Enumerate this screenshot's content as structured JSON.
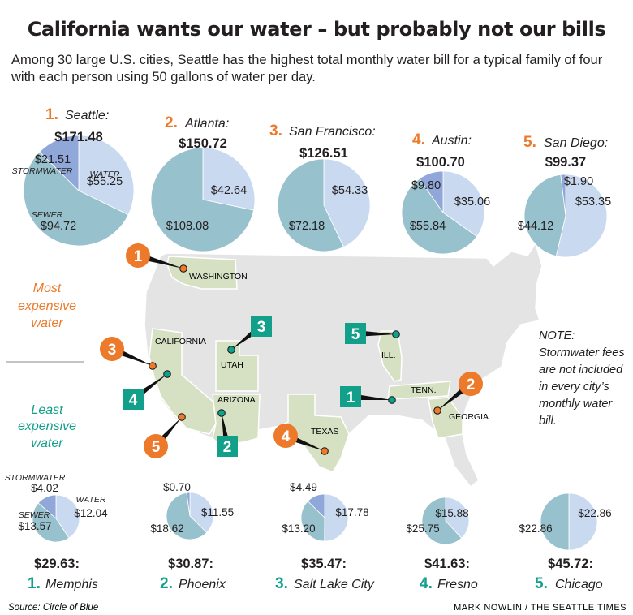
{
  "title": "California wants our water – but probably not our bills",
  "subtitle": "Among 30 large U.S. cities, Seattle has the highest total monthly water bill for a typical family of four with each person using 50 gallons of water per day.",
  "colors": {
    "water": "#c9daf0",
    "sewer": "#98c1ce",
    "stormwater": "#8fa7d9",
    "orange": "#ec7a2a",
    "teal": "#13a08a",
    "map_land": "#e4e4e4",
    "map_highlight": "#d6e0c2"
  },
  "legend": {
    "most": "Most expensive water",
    "least": "Least expensive water"
  },
  "note": "NOTE: Stormwater fees are not included in every city’s monthly water bill.",
  "source": "Source: Circle of Blue",
  "credit": "MARK NOWLIN / THE SEATTLE TIMES",
  "states": {
    "washington": "WASHINGTON",
    "california": "CALIFORNIA",
    "utah": "UTAH",
    "arizona": "ARIZONA",
    "texas": "TEXAS",
    "illinois": "ILL.",
    "tennessee": "TENN.",
    "georgia": "GEORGIA"
  },
  "chart_data": [
    {
      "type": "pie",
      "group": "most",
      "rank": "1.",
      "city": "Seattle:",
      "total": "$171.48",
      "slices": [
        {
          "name": "WATER",
          "value": 55.25,
          "label": "$55.25"
        },
        {
          "name": "SEWER",
          "value": 94.72,
          "label": "$94.72"
        },
        {
          "name": "STORMWATER",
          "value": 21.51,
          "label": "$21.51"
        }
      ]
    },
    {
      "type": "pie",
      "group": "most",
      "rank": "2.",
      "city": "Atlanta:",
      "total": "$150.72",
      "slices": [
        {
          "name": "WATER",
          "value": 42.64,
          "label": "$42.64"
        },
        {
          "name": "SEWER",
          "value": 108.08,
          "label": "$108.08"
        }
      ]
    },
    {
      "type": "pie",
      "group": "most",
      "rank": "3.",
      "city": "San Francisco:",
      "total": "$126.51",
      "slices": [
        {
          "name": "WATER",
          "value": 54.33,
          "label": "$54.33"
        },
        {
          "name": "SEWER",
          "value": 72.18,
          "label": "$72.18"
        }
      ]
    },
    {
      "type": "pie",
      "group": "most",
      "rank": "4.",
      "city": "Austin:",
      "total": "$100.70",
      "slices": [
        {
          "name": "WATER",
          "value": 35.06,
          "label": "$35.06"
        },
        {
          "name": "SEWER",
          "value": 55.84,
          "label": "$55.84"
        },
        {
          "name": "STORMWATER",
          "value": 9.8,
          "label": "$9.80"
        }
      ]
    },
    {
      "type": "pie",
      "group": "most",
      "rank": "5.",
      "city": "San Diego:",
      "total": "$99.37",
      "slices": [
        {
          "name": "WATER",
          "value": 53.35,
          "label": "$53.35"
        },
        {
          "name": "SEWER",
          "value": 44.12,
          "label": "$44.12"
        },
        {
          "name": "STORMWATER",
          "value": 1.9,
          "label": "$1.90"
        }
      ]
    },
    {
      "type": "pie",
      "group": "least",
      "rank": "1.",
      "city": "Memphis",
      "total": "$29.63:",
      "slices": [
        {
          "name": "WATER",
          "value": 12.04,
          "label": "$12.04"
        },
        {
          "name": "SEWER",
          "value": 13.57,
          "label": "$13.57"
        },
        {
          "name": "STORMWATER",
          "value": 4.02,
          "label": "$4.02"
        }
      ]
    },
    {
      "type": "pie",
      "group": "least",
      "rank": "2.",
      "city": "Phoenix",
      "total": "$30.87:",
      "slices": [
        {
          "name": "WATER",
          "value": 11.55,
          "label": "$11.55"
        },
        {
          "name": "SEWER",
          "value": 18.62,
          "label": "$18.62"
        },
        {
          "name": "STORMWATER",
          "value": 0.7,
          "label": "$0.70"
        }
      ]
    },
    {
      "type": "pie",
      "group": "least",
      "rank": "3.",
      "city": "Salt Lake City",
      "total": "$35.47:",
      "slices": [
        {
          "name": "WATER",
          "value": 17.78,
          "label": "$17.78"
        },
        {
          "name": "SEWER",
          "value": 13.2,
          "label": "$13.20"
        },
        {
          "name": "STORMWATER",
          "value": 4.49,
          "label": "$4.49"
        }
      ]
    },
    {
      "type": "pie",
      "group": "least",
      "rank": "4.",
      "city": "Fresno",
      "total": "$41.63:",
      "slices": [
        {
          "name": "WATER",
          "value": 15.88,
          "label": "$15.88"
        },
        {
          "name": "SEWER",
          "value": 25.75,
          "label": "$25.75"
        }
      ]
    },
    {
      "type": "pie",
      "group": "least",
      "rank": "5.",
      "city": "Chicago",
      "total": "$45.72:",
      "slices": [
        {
          "name": "WATER",
          "value": 22.86,
          "label": "$22.86"
        },
        {
          "name": "SEWER",
          "value": 22.86,
          "label": "$22.86"
        }
      ]
    }
  ],
  "map_markers": [
    {
      "rank": "1",
      "group": "most",
      "city": "Seattle"
    },
    {
      "rank": "2",
      "group": "most",
      "city": "Atlanta"
    },
    {
      "rank": "3",
      "group": "most",
      "city": "San Francisco"
    },
    {
      "rank": "4",
      "group": "most",
      "city": "Austin"
    },
    {
      "rank": "5",
      "group": "most",
      "city": "San Diego"
    },
    {
      "rank": "1",
      "group": "least",
      "city": "Memphis"
    },
    {
      "rank": "2",
      "group": "least",
      "city": "Phoenix"
    },
    {
      "rank": "3",
      "group": "least",
      "city": "Salt Lake City"
    },
    {
      "rank": "4",
      "group": "least",
      "city": "Fresno"
    },
    {
      "rank": "5",
      "group": "least",
      "city": "Chicago"
    }
  ]
}
